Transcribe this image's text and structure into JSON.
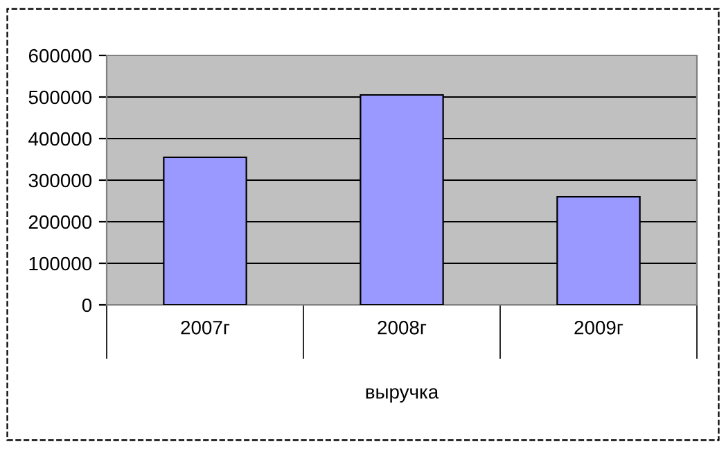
{
  "chart_data": {
    "type": "bar",
    "categories": [
      "2007г",
      "2008г",
      "2009г"
    ],
    "xlabel": "выручка",
    "values": [
      355000,
      505000,
      260000
    ],
    "color": "#9999ff",
    "ylim": [
      0,
      600000
    ],
    "yticks": [
      0,
      100000,
      200000,
      300000,
      400000,
      500000,
      600000
    ],
    "grid": "y"
  }
}
